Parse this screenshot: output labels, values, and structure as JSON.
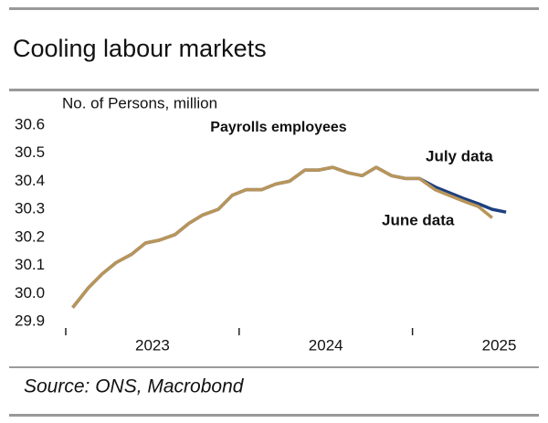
{
  "chart_data": {
    "type": "line",
    "title": "Cooling labour markets",
    "y_label": "No. of Persons, million",
    "annotation": "Payrolls employees",
    "source": "Source: ONS, Macrobond",
    "x": [
      2023.04,
      2023.13,
      2023.21,
      2023.29,
      2023.38,
      2023.46,
      2023.54,
      2023.63,
      2023.71,
      2023.79,
      2023.88,
      2023.96,
      2024.04,
      2024.13,
      2024.21,
      2024.29,
      2024.38,
      2024.46,
      2024.54,
      2024.63,
      2024.71,
      2024.79,
      2024.88,
      2024.96,
      2025.04,
      2025.13,
      2025.21,
      2025.29,
      2025.38,
      2025.46,
      2025.54
    ],
    "series": [
      {
        "name": "July data",
        "color": "#1d3f80",
        "values": [
          29.95,
          30.02,
          30.07,
          30.11,
          30.14,
          30.18,
          30.19,
          30.21,
          30.25,
          30.28,
          30.3,
          30.35,
          30.37,
          30.37,
          30.39,
          30.4,
          30.44,
          30.44,
          30.45,
          30.43,
          30.42,
          30.45,
          30.42,
          30.41,
          30.41,
          30.38,
          30.36,
          30.34,
          30.32,
          30.3,
          30.29
        ]
      },
      {
        "name": "June data",
        "color": "#b8955a",
        "values": [
          29.95,
          30.02,
          30.07,
          30.11,
          30.14,
          30.18,
          30.19,
          30.21,
          30.25,
          30.28,
          30.3,
          30.35,
          30.37,
          30.37,
          30.39,
          30.4,
          30.44,
          30.44,
          30.45,
          30.43,
          30.42,
          30.45,
          30.42,
          30.41,
          30.41,
          30.37,
          30.35,
          30.33,
          30.31,
          30.27,
          null
        ]
      }
    ],
    "xlim": [
      2023,
      2025.65
    ],
    "xticks": [
      2023,
      2024,
      2025
    ],
    "xlabels": [
      {
        "value": 2023.5,
        "label": "2023"
      },
      {
        "value": 2024.5,
        "label": "2024"
      },
      {
        "value": 2025.5,
        "label": "2025"
      }
    ],
    "ylim": [
      29.9,
      30.6
    ],
    "yticks": [
      29.9,
      {
        "value": 30,
        "label": "30.0"
      },
      30.1,
      30.2,
      30.3,
      30.4,
      30.5,
      30.6
    ]
  }
}
